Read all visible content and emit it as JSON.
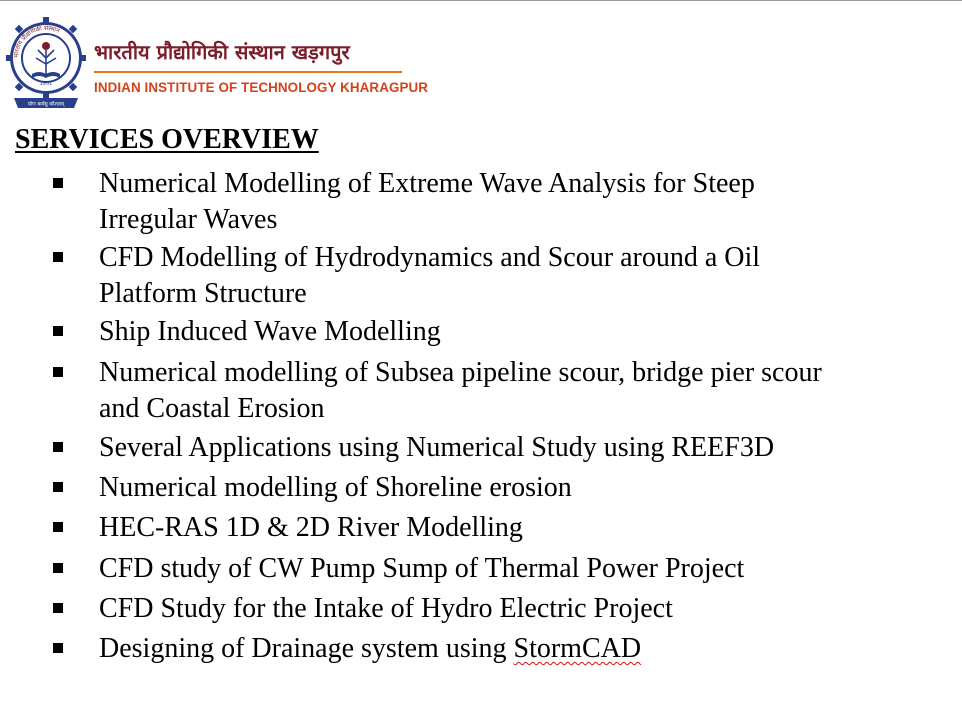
{
  "header": {
    "institute_name_hindi": "भारतीय प्रौद्योगिकी संस्थान खड़गपुर",
    "institute_name_english": "INDIAN INSTITUTE OF TECHNOLOGY KHARAGPUR",
    "brand_color_maroon": "#7a1e2a",
    "brand_color_orange": "#d4421a",
    "logo_icon": "iit-kharagpur-emblem-icon",
    "logo_text": {
      "top_arc": "भारतीय प्रौद्योगिकी संस्थान",
      "year": "1951",
      "motto": "योगः कर्मसु कौशलम्"
    }
  },
  "section": {
    "title": "SERVICES OVERVIEW"
  },
  "services": [
    {
      "lines": [
        "Numerical Modelling of Extreme Wave Analysis for Steep",
        "Irregular Waves"
      ]
    },
    {
      "lines": [
        "CFD Modelling of Hydrodynamics and Scour around a Oil",
        "Platform Structure"
      ]
    },
    {
      "lines": [
        "Ship Induced Wave Modelling"
      ]
    },
    {
      "lines": [
        "Numerical modelling of Subsea pipeline scour, bridge pier scour",
        "and Coastal Erosion"
      ]
    },
    {
      "lines": [
        "Several Applications using Numerical Study using REEF3D"
      ]
    },
    {
      "lines": [
        "Numerical modelling of Shoreline erosion"
      ]
    },
    {
      "lines": [
        "HEC-RAS 1D & 2D River Modelling"
      ]
    },
    {
      "lines": [
        "CFD study of CW Pump Sump of Thermal Power Project"
      ]
    },
    {
      "lines": [
        "CFD Study for the Intake of Hydro Electric Project"
      ]
    },
    {
      "lines": [
        "Designing of Drainage system using ",
        "StormCAD"
      ]
    }
  ],
  "bullet_icon": "square-bullet-icon"
}
